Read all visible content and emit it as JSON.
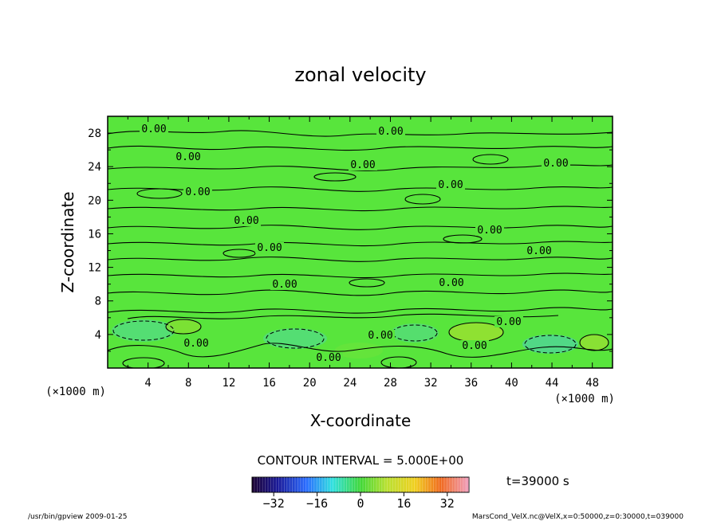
{
  "chart_data": {
    "type": "heatmap",
    "title": "zonal velocity",
    "xlabel": "X-coordinate",
    "ylabel": "Z-coordinate",
    "x_unit": "(×1000 m)",
    "y_unit": "(×1000 m)",
    "xlim": [
      0,
      50
    ],
    "ylim": [
      0,
      30
    ],
    "x_ticks": [
      "4",
      "8",
      "12",
      "16",
      "20",
      "24",
      "28",
      "32",
      "36",
      "40",
      "44",
      "48"
    ],
    "y_ticks": [
      "4",
      "8",
      "12",
      "16",
      "20",
      "24",
      "28"
    ],
    "contour_labels": [
      "0.00",
      "0.00",
      "0.00",
      "0.00",
      "0.00",
      "0.00",
      "0.00",
      "0.00",
      "0.00",
      "0.00",
      "0.00",
      "0.00",
      "0.00",
      "0.00",
      "0.00",
      "0.00",
      "0.00",
      "0.00"
    ],
    "contour_interval_text": "CONTOUR INTERVAL = 5.000E+00",
    "colorbar": {
      "ticks": [
        "−32",
        "−16",
        "0",
        "16",
        "32"
      ],
      "range": [
        -40,
        40
      ]
    },
    "time_text": "t=39000  s"
  },
  "footer": {
    "left": "/usr/bin/gpview   2009-01-25",
    "right": "MarsCond_VelX.nc@VelX,x=0:50000,z=0:30000,t=039000"
  }
}
